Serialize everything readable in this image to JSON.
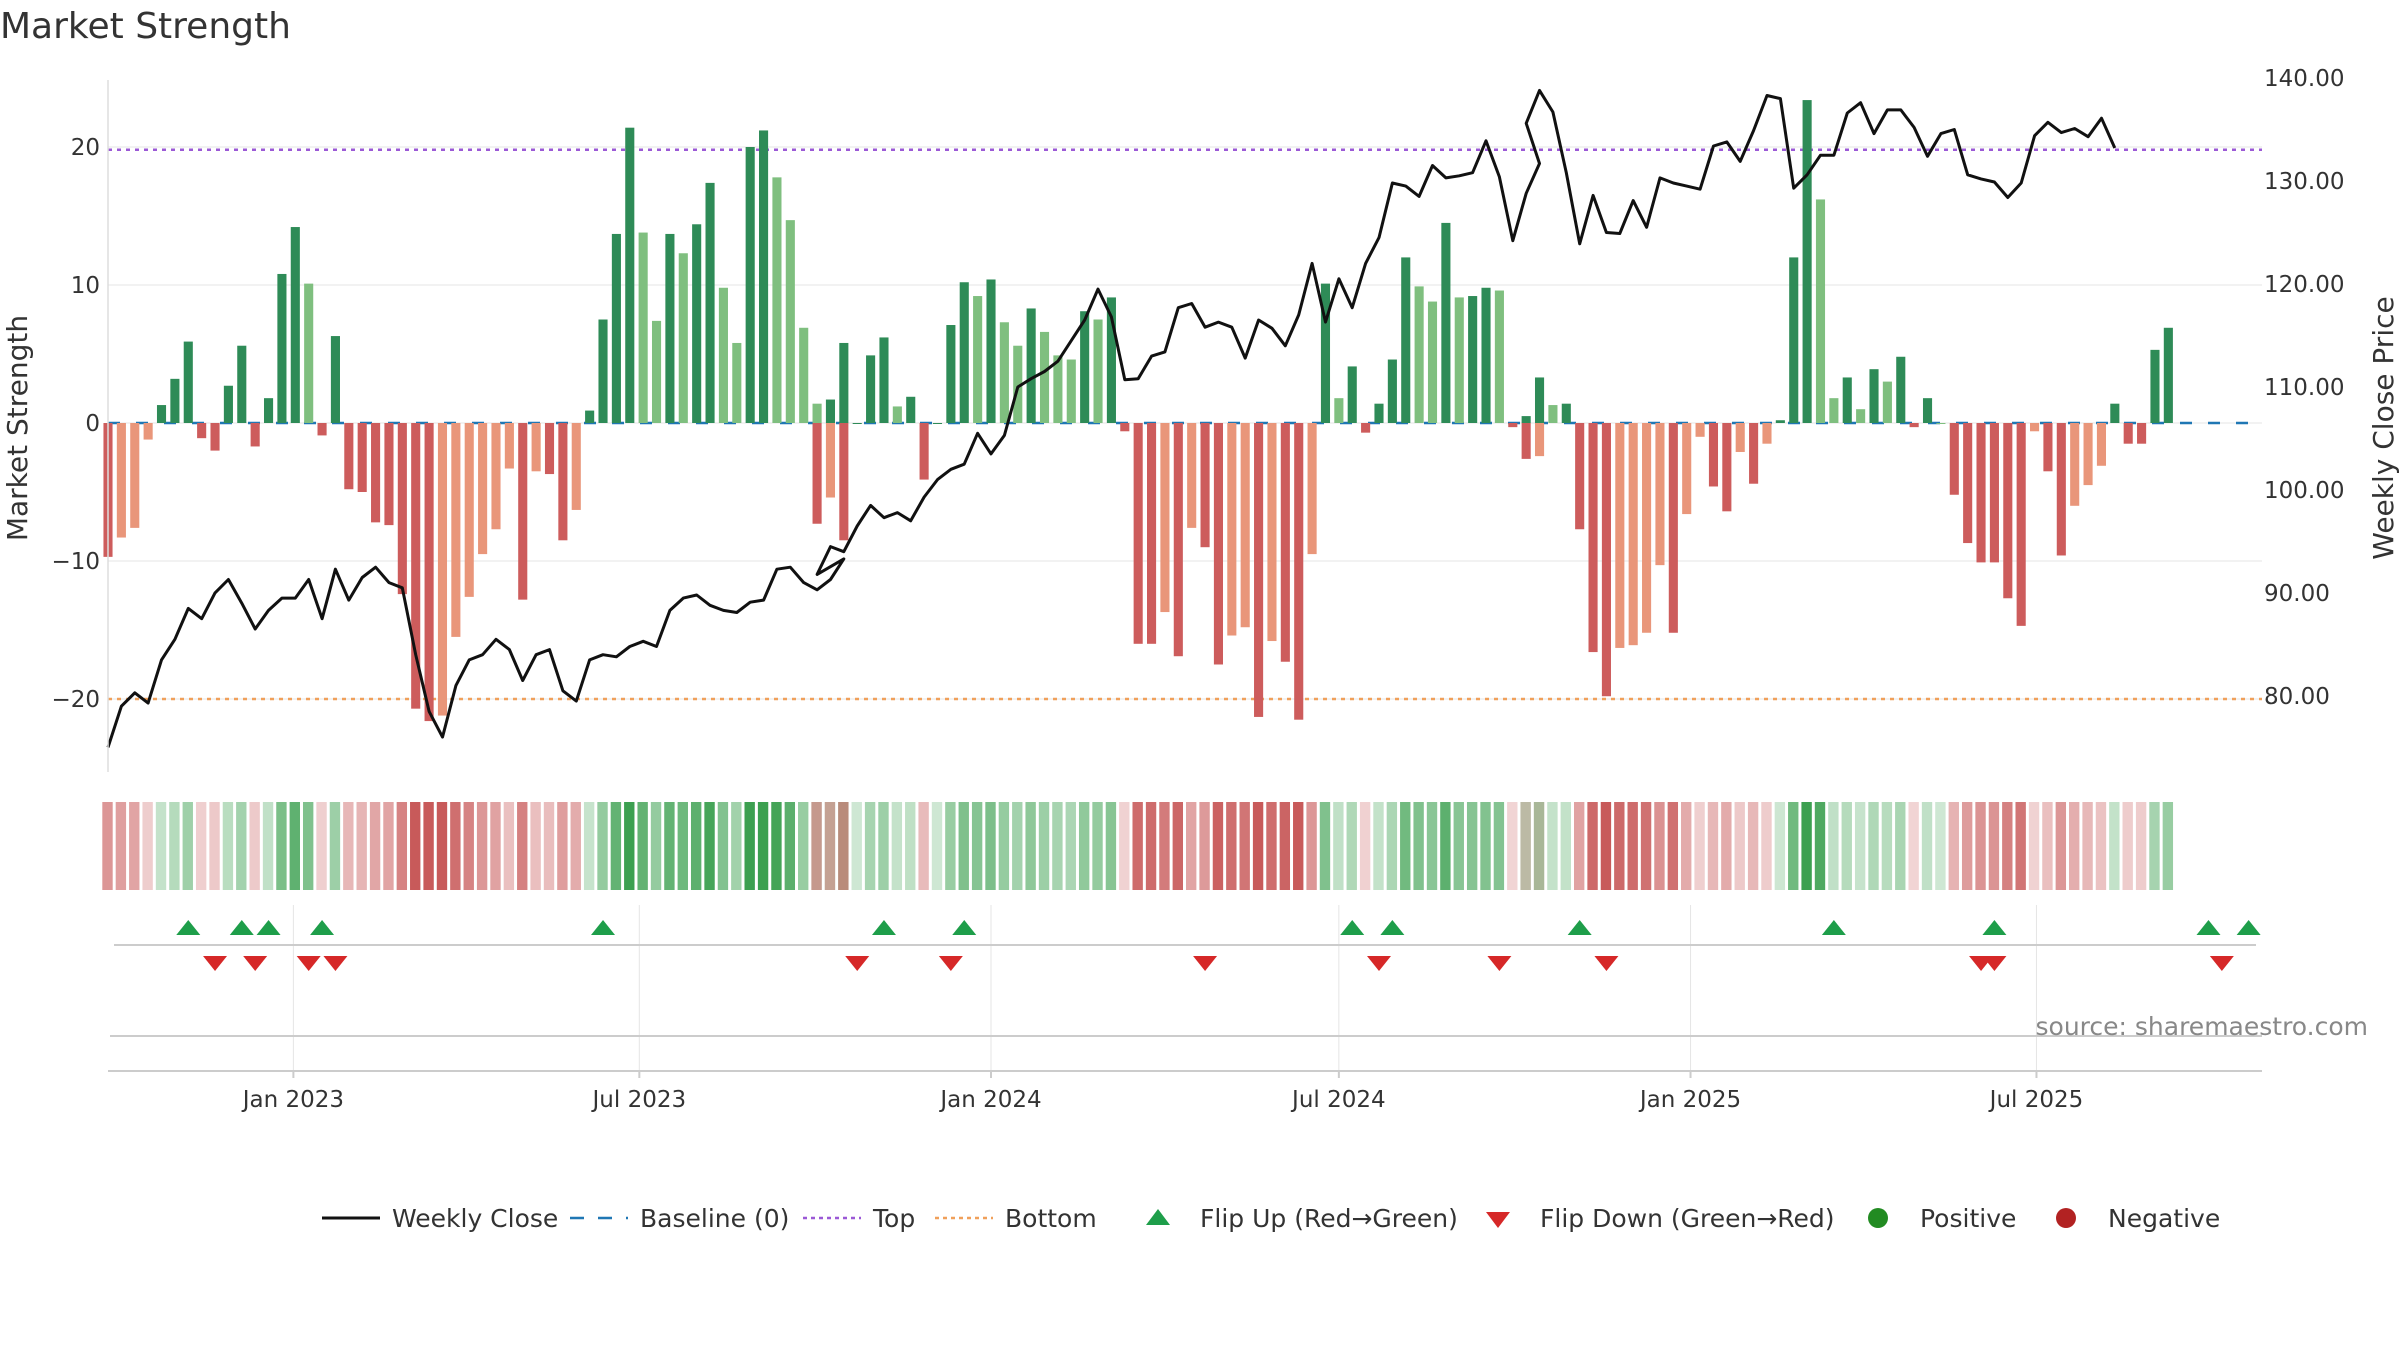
{
  "chart_data": {
    "type": "bar",
    "title": "Market Strength",
    "ylabel_left": "Market Strength",
    "ylabel_right": "Weekly Close Price",
    "source": "source: sharemaestro.com",
    "ylim_left": [
      -25,
      25
    ],
    "yticks_left": [
      {
        "value": 20,
        "label": "20"
      },
      {
        "value": 10,
        "label": "10"
      },
      {
        "value": 0,
        "label": "0"
      },
      {
        "value": -10,
        "label": "−10"
      },
      {
        "value": -20,
        "label": "−20"
      }
    ],
    "ylim_right": [
      73,
      140
    ],
    "yticks_right": [
      {
        "value": 140,
        "label": "140.00"
      },
      {
        "value": 130,
        "label": "130.00"
      },
      {
        "value": 120,
        "label": "120.00"
      },
      {
        "value": 110,
        "label": "110.00"
      },
      {
        "value": 100,
        "label": "100.00"
      },
      {
        "value": 90,
        "label": "90.00"
      },
      {
        "value": 80,
        "label": "80.00"
      }
    ],
    "x_start": "2022-09-26",
    "x_end": "2025-10-27",
    "x_ticks": [
      {
        "date": "2023-01-01",
        "label": "Jan 2023"
      },
      {
        "date": "2023-07-01",
        "label": "Jul 2023"
      },
      {
        "date": "2024-01-01",
        "label": "Jan 2024"
      },
      {
        "date": "2024-07-01",
        "label": "Jul 2024"
      },
      {
        "date": "2025-01-01",
        "label": "Jan 2025"
      },
      {
        "date": "2025-07-01",
        "label": "Jul 2025"
      }
    ],
    "top_threshold": 19.8,
    "bottom_threshold": -20,
    "week_starts": [
      "2022-09-26",
      "2023-10-02",
      "2024-10-07"
    ],
    "strength": [
      [
        -9.7,
        -8.3,
        -7.6,
        -1.2,
        1.3,
        3.2,
        5.9,
        -1.1,
        -2.0,
        2.7,
        5.6,
        -1.7,
        1.8,
        10.8,
        14.2,
        10.1,
        -0.9,
        6.3,
        -4.8,
        -5.0,
        -7.2,
        -7.4,
        -12.4,
        -20.7,
        -21.6,
        -21.2,
        -15.5,
        -12.6,
        -9.5,
        -7.7,
        -3.3,
        -12.8,
        -3.5,
        -3.7,
        -8.5,
        -6.3,
        0.9,
        7.5,
        13.7,
        21.4,
        13.8,
        7.4,
        13.7,
        12.3,
        14.4,
        17.4,
        9.8,
        5.8,
        20.0,
        21.2,
        17.8,
        14.7,
        6.9,
        1.4,
        1.7,
        5.8
      ],
      [
        -7.3,
        -5.4,
        -8.5,
        0,
        4.9,
        6.2,
        1.2,
        1.9,
        -4.1,
        0,
        7.1,
        10.2,
        9.2,
        10.4,
        7.3,
        5.6,
        8.3,
        6.6,
        4.9,
        4.6,
        8.1,
        7.5,
        9.1,
        -0.6,
        -16.0,
        -16.0,
        -13.7,
        -16.9,
        -7.6,
        -9.0,
        -17.5,
        -15.4,
        -14.8,
        -21.3,
        -15.8,
        -17.3,
        -21.5,
        -9.5,
        10.1,
        1.8,
        4.1,
        -0.7,
        1.4,
        4.6,
        12.0,
        9.9,
        8.8,
        14.5,
        9.1,
        9.2,
        9.8,
        9.6,
        -0.3,
        -2.6,
        -2.4
      ],
      [
        0.5,
        3.3,
        1.3,
        1.4,
        -7.7,
        -16.6,
        -19.8,
        -16.3,
        -16.1,
        -15.2,
        -10.3,
        -15.2,
        -6.6,
        -1.0,
        -4.6,
        -6.4,
        -2.1,
        -4.4,
        -1.5,
        0.2,
        12.0,
        23.4,
        16.2,
        1.8,
        3.3,
        1.0,
        3.9,
        3.0,
        4.8,
        -0.3,
        1.8,
        0,
        -5.2,
        -8.7,
        -10.1,
        -10.1,
        -12.7,
        -14.7,
        -0.6,
        -3.5,
        -9.6,
        -6.0,
        -4.5,
        -3.1,
        1.4,
        -1.5,
        -1.5,
        5.3,
        6.9
      ]
    ],
    "weekly_close": [
      [
        75,
        79,
        80.3,
        79.3,
        83.5,
        85.5,
        88.5,
        87.5,
        90,
        91.3,
        89,
        86.5,
        88.3,
        89.5,
        89.5,
        91.3,
        87.5,
        92.3,
        89.3,
        91.5,
        92.5,
        91,
        90.5,
        84,
        78.5,
        76,
        81,
        83.5,
        84,
        85.5,
        84.5,
        81.5,
        84,
        84.5,
        80.5,
        79.5,
        83.5,
        84,
        83.8,
        84.8,
        85.3,
        84.8,
        88.3,
        89.5,
        89.8,
        88.8,
        88.3,
        88.1,
        89.1,
        89.3,
        92.3,
        92.5,
        91,
        90.3,
        91.3,
        93.3
      ],
      [
        91.8,
        94.5,
        94,
        96.5,
        98.5,
        97.3,
        97.8,
        97,
        99.3,
        101,
        102,
        102.5,
        105.5,
        103.5,
        105.3,
        110,
        110.8,
        111.5,
        112.5,
        114.5,
        116.5,
        119.5,
        116.8,
        110.7,
        110.8,
        113,
        113.4,
        117.7,
        118.1,
        115.8,
        116.3,
        115.8,
        112.8,
        116.5,
        115.7,
        114,
        117,
        122,
        116.3,
        120.5,
        117.7,
        122,
        124.5,
        129.8,
        129.5,
        128.5,
        131.5,
        130.3,
        130.5,
        130.8,
        133.9,
        130.4,
        124.2,
        128.8,
        131.7
      ],
      [
        135.6,
        138.8,
        136.7,
        130.8,
        123.9,
        128.6,
        125,
        124.9,
        128.1,
        125.5,
        130.3,
        129.8,
        129.5,
        129.2,
        133.4,
        133.8,
        131.9,
        134.9,
        138.3,
        138,
        129.3,
        130.6,
        132.5,
        132.5,
        136.6,
        137.6,
        134.6,
        136.9,
        136.9,
        135.2,
        132.4,
        134.6,
        135,
        130.6,
        130.2,
        129.9,
        128.4,
        129.8,
        134.4,
        135.7,
        134.7,
        135.1,
        134.3,
        136.1,
        133.2
      ],
      []
    ],
    "flip_up_dates": [
      "2022-11-07",
      "2022-12-05",
      "2022-12-19",
      "2023-01-16",
      "2023-06-12",
      "2023-11-06",
      "2023-12-18",
      "2024-07-08",
      "2024-07-29",
      "2024-11-04",
      "2025-03-17",
      "2025-06-09",
      "2025-09-29",
      "2025-10-20"
    ],
    "flip_down_dates": [
      "2022-11-21",
      "2022-12-12",
      "2023-01-09",
      "2023-01-23",
      "2023-10-23",
      "2023-12-11",
      "2024-04-22",
      "2024-07-22",
      "2024-09-23",
      "2024-11-18",
      "2025-06-02",
      "2025-06-09",
      "2025-10-06"
    ],
    "colors": {
      "strong_pos": "#2e8b57",
      "weak_pos": "#7fbf7f",
      "strong_neg": "#cd5c5c",
      "weak_neg": "#e9967a",
      "close_line": "#111111",
      "baseline": "#1f77b4",
      "top": "#9b59d6",
      "bottom": "#f0a05a",
      "flip_up": "#1e9e4a",
      "flip_down": "#d62828",
      "positive": "#228b22",
      "negative": "#b22222",
      "grid": "#e5e5e5"
    },
    "legend": [
      {
        "kind": "line",
        "label": "Weekly Close",
        "color": "#111111"
      },
      {
        "kind": "dash",
        "label": "Baseline (0)",
        "color": "#1f77b4"
      },
      {
        "kind": "dots",
        "label": "Top",
        "color": "#9b59d6"
      },
      {
        "kind": "dots",
        "label": "Bottom",
        "color": "#f0a05a"
      },
      {
        "kind": "tri-up",
        "label": "Flip Up (Red→Green)",
        "color": "#1e9e4a"
      },
      {
        "kind": "tri-down",
        "label": "Flip Down (Green→Red)",
        "color": "#d62828"
      },
      {
        "kind": "dot",
        "label": "Positive",
        "color": "#228b22"
      },
      {
        "kind": "dot",
        "label": "Negative",
        "color": "#b22222"
      }
    ]
  }
}
